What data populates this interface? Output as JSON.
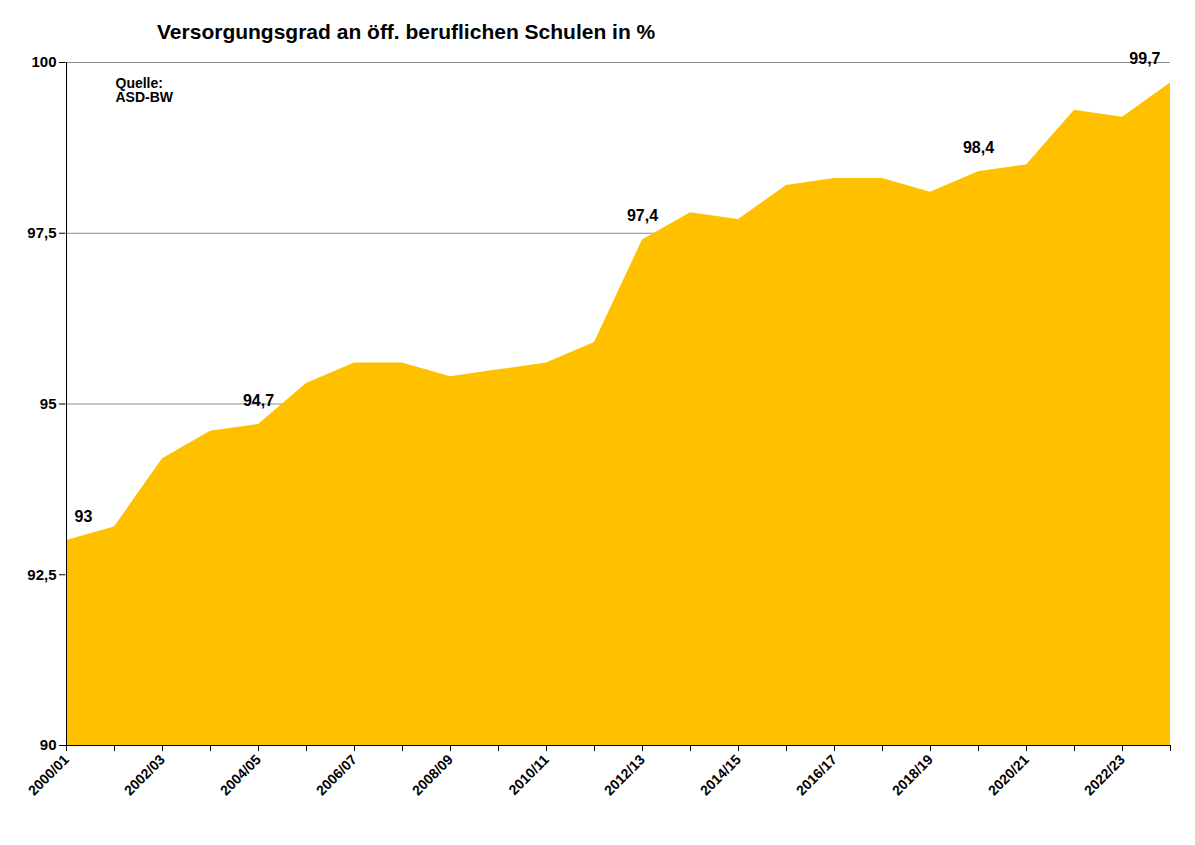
{
  "chart_data": {
    "type": "area",
    "title": "Versorgungsgrad an öff. beruflichen Schulen in %",
    "source": "Quelle:\nASD-BW",
    "categories": [
      "2000/01",
      null,
      "2002/03",
      null,
      "2004/05",
      null,
      "2006/07",
      null,
      "2008/09",
      null,
      "2010/11",
      null,
      "2012/13",
      null,
      "2014/15",
      null,
      "2016/17",
      null,
      "2018/19",
      null,
      "2020/21",
      null,
      "2022/23",
      null
    ],
    "values": [
      93,
      93.2,
      94.2,
      94.6,
      94.7,
      95.3,
      95.6,
      95.6,
      95.4,
      95.5,
      95.6,
      95.9,
      97.4,
      97.8,
      97.7,
      98.2,
      98.3,
      98.3,
      98.1,
      98.4,
      98.5,
      99.3,
      99.2,
      99.7
    ],
    "value_labels": [
      "93",
      null,
      null,
      null,
      "94,7",
      null,
      null,
      null,
      null,
      null,
      null,
      null,
      "97,4",
      null,
      null,
      null,
      null,
      null,
      null,
      "98,4",
      null,
      null,
      null,
      "99,7"
    ],
    "data_labels": true,
    "color": "#FFC000",
    "ylim": [
      90,
      100
    ],
    "yticks": [
      90,
      {
        "value": 92.5,
        "label": "92,5"
      },
      95,
      {
        "value": 97.5,
        "label": "97,5"
      },
      100
    ],
    "grid": true
  }
}
